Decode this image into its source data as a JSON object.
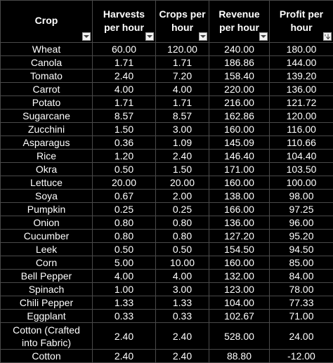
{
  "headers": {
    "crop": "Crop",
    "harvests": "Harvests per hour",
    "crops": "Crops per hour",
    "revenue": "Revenue per hour",
    "profit": "Profit per hour"
  },
  "icons": {
    "filter": "chevron-down-icon",
    "sorted": "sort-descending-icon"
  },
  "rows": [
    {
      "crop": "Wheat",
      "harvests": "60.00",
      "crops": "120.00",
      "revenue": "240.00",
      "profit": "180.00"
    },
    {
      "crop": "Canola",
      "harvests": "1.71",
      "crops": "1.71",
      "revenue": "186.86",
      "profit": "144.00"
    },
    {
      "crop": "Tomato",
      "harvests": "2.40",
      "crops": "7.20",
      "revenue": "158.40",
      "profit": "139.20"
    },
    {
      "crop": "Carrot",
      "harvests": "4.00",
      "crops": "4.00",
      "revenue": "220.00",
      "profit": "136.00"
    },
    {
      "crop": "Potato",
      "harvests": "1.71",
      "crops": "1.71",
      "revenue": "216.00",
      "profit": "121.72"
    },
    {
      "crop": "Sugarcane",
      "harvests": "8.57",
      "crops": "8.57",
      "revenue": "162.86",
      "profit": "120.00"
    },
    {
      "crop": "Zucchini",
      "harvests": "1.50",
      "crops": "3.00",
      "revenue": "160.00",
      "profit": "116.00"
    },
    {
      "crop": "Asparagus",
      "harvests": "0.36",
      "crops": "1.09",
      "revenue": "145.09",
      "profit": "110.66"
    },
    {
      "crop": "Rice",
      "harvests": "1.20",
      "crops": "2.40",
      "revenue": "146.40",
      "profit": "104.40"
    },
    {
      "crop": "Okra",
      "harvests": "0.50",
      "crops": "1.50",
      "revenue": "171.00",
      "profit": "103.50"
    },
    {
      "crop": "Lettuce",
      "harvests": "20.00",
      "crops": "20.00",
      "revenue": "160.00",
      "profit": "100.00"
    },
    {
      "crop": "Soya",
      "harvests": "0.67",
      "crops": "2.00",
      "revenue": "138.00",
      "profit": "98.00"
    },
    {
      "crop": "Pumpkin",
      "harvests": "0.25",
      "crops": "0.25",
      "revenue": "166.00",
      "profit": "97.25"
    },
    {
      "crop": "Onion",
      "harvests": "0.80",
      "crops": "0.80",
      "revenue": "136.00",
      "profit": "96.00"
    },
    {
      "crop": "Cucumber",
      "harvests": "0.80",
      "crops": "0.80",
      "revenue": "127.20",
      "profit": "95.20"
    },
    {
      "crop": "Leek",
      "harvests": "0.50",
      "crops": "0.50",
      "revenue": "154.50",
      "profit": "94.50"
    },
    {
      "crop": "Corn",
      "harvests": "5.00",
      "crops": "10.00",
      "revenue": "160.00",
      "profit": "85.00"
    },
    {
      "crop": "Bell Pepper",
      "harvests": "4.00",
      "crops": "4.00",
      "revenue": "132.00",
      "profit": "84.00"
    },
    {
      "crop": "Spinach",
      "harvests": "1.00",
      "crops": "3.00",
      "revenue": "123.00",
      "profit": "78.00"
    },
    {
      "crop": "Chili Pepper",
      "harvests": "1.33",
      "crops": "1.33",
      "revenue": "104.00",
      "profit": "77.33"
    },
    {
      "crop": "Eggplant",
      "harvests": "0.33",
      "crops": "0.33",
      "revenue": "102.67",
      "profit": "71.00"
    },
    {
      "crop": "Cotton (Crafted into Fabric)",
      "harvests": "2.40",
      "crops": "2.40",
      "revenue": "528.00",
      "profit": "24.00"
    },
    {
      "crop": "Cotton",
      "harvests": "2.40",
      "crops": "2.40",
      "revenue": "88.80",
      "profit": "-12.00"
    }
  ]
}
